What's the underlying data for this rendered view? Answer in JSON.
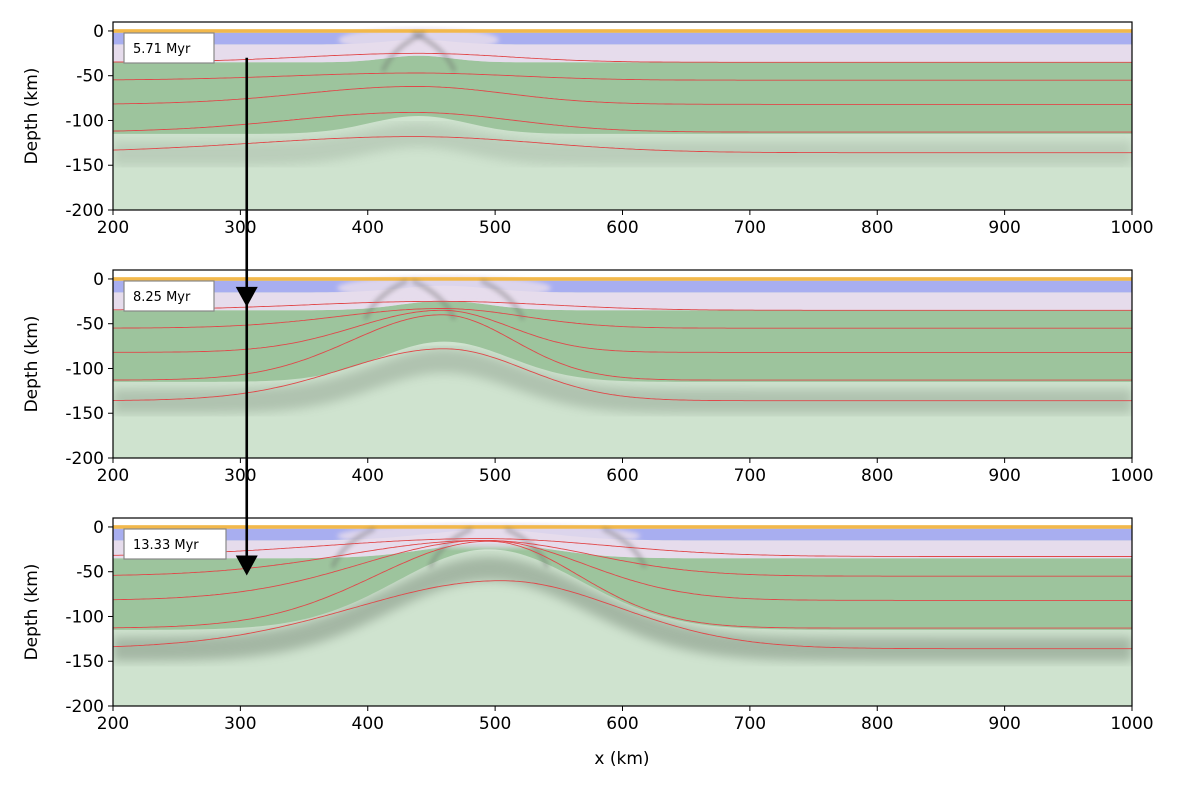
{
  "chart_data": {
    "type": "line",
    "panels": [
      {
        "time_label": "5.71 Myr",
        "xlim": [
          200,
          1000
        ],
        "ylim": [
          -200,
          10
        ],
        "ylabel": "Depth (km)",
        "xticks": [
          "200",
          "300",
          "400",
          "500",
          "600",
          "700",
          "800",
          "900",
          "1000"
        ],
        "yticks": [
          "0",
          "-50",
          "-100",
          "-150",
          "-200"
        ],
        "layers": {
          "upper_crust_base": -15,
          "lower_crust_base": -35,
          "lithosphere_base": -115
        },
        "rift": {
          "center": 440,
          "width": 45,
          "crust_thinning": 0.35,
          "lith_uplift": 20
        },
        "isotherms": [
          {
            "base": -35,
            "peak_x": 440,
            "uplift": 10,
            "width": 50
          },
          {
            "base": -55,
            "peak_x": 438,
            "uplift": 8,
            "width": 55
          },
          {
            "base": -82,
            "peak_x": 438,
            "uplift": 20,
            "width": 50
          },
          {
            "base": -113,
            "peak_x": 436,
            "uplift": 22,
            "width": 55
          },
          {
            "base": -136,
            "peak_x": 436,
            "uplift": 18,
            "width": 70
          }
        ]
      },
      {
        "time_label": "8.25 Myr",
        "xlim": [
          200,
          1000
        ],
        "ylim": [
          -200,
          10
        ],
        "ylabel": "Depth (km)",
        "xticks": [
          "200",
          "300",
          "400",
          "500",
          "600",
          "700",
          "800",
          "900",
          "1000"
        ],
        "yticks": [
          "0",
          "-50",
          "-100",
          "-150",
          "-200"
        ],
        "layers": {
          "upper_crust_base": -15,
          "lower_crust_base": -35,
          "lithosphere_base": -115
        },
        "rift": {
          "center": 460,
          "width": 60,
          "crust_thinning": 0.5,
          "lith_uplift": 45
        },
        "isotherms": [
          {
            "base": -35,
            "peak_x": 458,
            "uplift": 10,
            "width": 60
          },
          {
            "base": -55,
            "peak_x": 458,
            "uplift": 22,
            "width": 45
          },
          {
            "base": -82,
            "peak_x": 458,
            "uplift": 47,
            "width": 38
          },
          {
            "base": -113,
            "peak_x": 458,
            "uplift": 73,
            "width": 40
          },
          {
            "base": -136,
            "peak_x": 460,
            "uplift": 58,
            "width": 45
          }
        ]
      },
      {
        "time_label": "13.33 Myr",
        "xlim": [
          200,
          1000
        ],
        "ylim": [
          -200,
          10
        ],
        "ylabel": "Depth (km)",
        "xlabel": "x (km)",
        "xticks": [
          "200",
          "300",
          "400",
          "500",
          "600",
          "700",
          "800",
          "900",
          "1000"
        ],
        "yticks": [
          "0",
          "-50",
          "-100",
          "-150",
          "-200"
        ],
        "layers": {
          "upper_crust_base": -15,
          "lower_crust_base": -35,
          "lithosphere_base": -115
        },
        "rift": {
          "center": 495,
          "width": 85,
          "crust_thinning": 0.8,
          "lith_uplift": 90
        },
        "isotherms": [
          {
            "base": -33,
            "peak_x": 490,
            "uplift": 20,
            "width": 70
          },
          {
            "base": -55,
            "peak_x": 490,
            "uplift": 40,
            "width": 60
          },
          {
            "base": -82,
            "peak_x": 492,
            "uplift": 67,
            "width": 55
          },
          {
            "base": -113,
            "peak_x": 495,
            "uplift": 97,
            "width": 50
          },
          {
            "base": -136,
            "peak_x": 505,
            "uplift": 76,
            "width": 65
          }
        ]
      }
    ],
    "arrow": {
      "x": 305,
      "from": {
        "panel": 0,
        "depth": -30
      },
      "to": {
        "panel": 2,
        "depth": -52
      }
    },
    "colors": {
      "sediment": "#f2b84b",
      "upper_crust": "#a8aef0",
      "lower_crust": "#e6dcec",
      "lithosphere": "#9dc49d",
      "asthenosphere": "#cfe3cf",
      "isotherm": "#e0484a",
      "shear": "#6b6b6b",
      "arrow": "#000000"
    }
  }
}
